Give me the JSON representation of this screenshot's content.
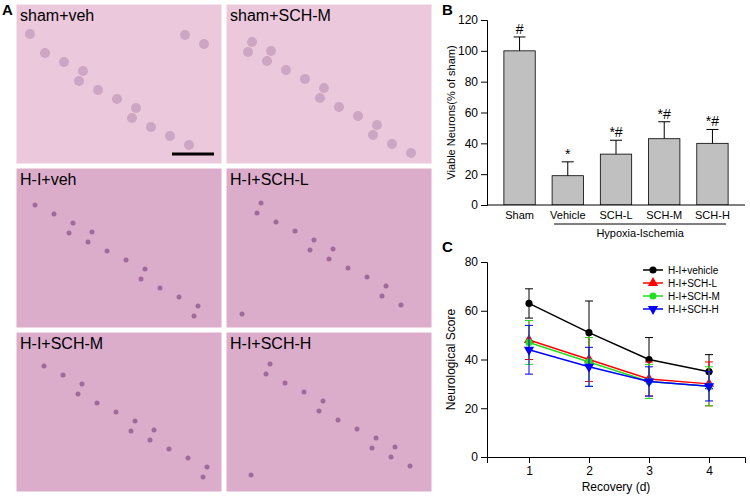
{
  "chart_data": [
    {
      "type": "images",
      "title": "A",
      "labels": [
        "sham+veh",
        "sham+SCH-M",
        "H-I+veh",
        "H-I+SCH-L",
        "H-I+SCH-M",
        "H-I+SCH-H"
      ]
    },
    {
      "type": "bar",
      "title": "B",
      "categories": [
        "Sham",
        "Vehicle",
        "SCH-L",
        "SCH-M",
        "SCH-H"
      ],
      "values": [
        100,
        19,
        33,
        43,
        40
      ],
      "errors": [
        9,
        9,
        9,
        11,
        9
      ],
      "annotations": [
        "#",
        "*",
        "*#",
        "*#",
        "*#"
      ],
      "xlabel": "Hypoxia-Ischemia",
      "ylabel": "Viable Neurons(% of sham)",
      "ylim": [
        0,
        120
      ],
      "yticks": [
        0,
        20,
        40,
        60,
        80,
        100,
        120
      ],
      "color": "#c0c0c0"
    },
    {
      "type": "line",
      "title": "C",
      "x": [
        1,
        2,
        3,
        4
      ],
      "series": [
        {
          "name": "H-I+vehicle",
          "color": "#000000",
          "marker": "circle",
          "values": [
            63,
            51,
            40,
            35
          ],
          "errors": [
            6,
            13,
            9,
            7
          ]
        },
        {
          "name": "H-I+SCH-L",
          "color": "#ff0000",
          "marker": "triangle",
          "values": [
            48,
            40,
            32,
            30
          ],
          "errors": [
            8,
            9,
            7,
            9
          ]
        },
        {
          "name": "H-I+SCH-M",
          "color": "#22dd22",
          "marker": "circle",
          "values": [
            47,
            39,
            31,
            29
          ],
          "errors": [
            9,
            10,
            7,
            8
          ]
        },
        {
          "name": "H-I+SCH-H",
          "color": "#0000ff",
          "marker": "triangle-down",
          "values": [
            44,
            37,
            31,
            29
          ],
          "errors": [
            10,
            8,
            6,
            6
          ]
        }
      ],
      "xlabel": "Recovery (d)",
      "ylabel": "Neurological Score",
      "xlim": [
        0.3,
        4.6
      ],
      "xticks": [
        1,
        2,
        3,
        4
      ],
      "ylim": [
        0,
        80
      ],
      "yticks": [
        0,
        20,
        40,
        60,
        80
      ],
      "legend": "upper right"
    }
  ]
}
